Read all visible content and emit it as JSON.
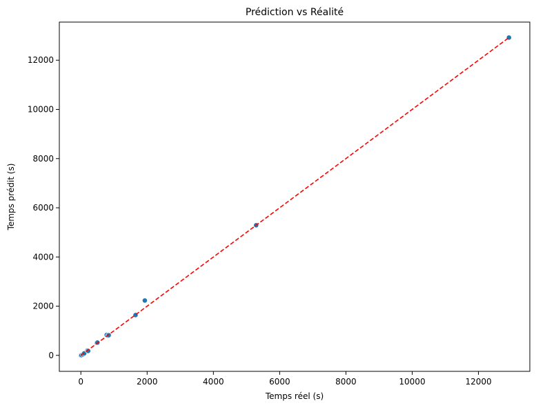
{
  "chart_data": {
    "type": "scatter",
    "title": "Prédiction vs Réalité",
    "xlabel": "Temps réel (s)",
    "ylabel": "Temps prédit (s)",
    "xlim": [
      -650,
      13550
    ],
    "ylim": [
      -650,
      13550
    ],
    "xticks": [
      0,
      2000,
      4000,
      6000,
      8000,
      10000,
      12000
    ],
    "yticks": [
      0,
      2000,
      4000,
      6000,
      8000,
      10000,
      12000
    ],
    "x_tick_labels": [
      "0",
      "2000",
      "4000",
      "6000",
      "8000",
      "10000",
      "12000"
    ],
    "y_tick_labels": [
      "0",
      "2000",
      "4000",
      "6000",
      "8000",
      "10000",
      "12000"
    ],
    "grid": false,
    "legend": "none",
    "series": [
      {
        "marker": "circle",
        "color": "#1f77b4",
        "points": [
          {
            "x": 0,
            "y": 0
          },
          {
            "x": 20,
            "y": 10
          },
          {
            "x": 60,
            "y": 40
          },
          {
            "x": 100,
            "y": 80
          },
          {
            "x": 200,
            "y": 200
          },
          {
            "x": 220,
            "y": 180
          },
          {
            "x": 480,
            "y": 510
          },
          {
            "x": 500,
            "y": 520
          },
          {
            "x": 780,
            "y": 830
          },
          {
            "x": 820,
            "y": 800
          },
          {
            "x": 840,
            "y": 820
          },
          {
            "x": 1650,
            "y": 1640
          },
          {
            "x": 1930,
            "y": 2230
          },
          {
            "x": 5290,
            "y": 5290
          },
          {
            "x": 12920,
            "y": 12920
          }
        ]
      }
    ],
    "reference_line": {
      "style": "dashed",
      "color": "#ff0000",
      "from": [
        0,
        0
      ],
      "to": [
        12920,
        12920
      ]
    }
  }
}
